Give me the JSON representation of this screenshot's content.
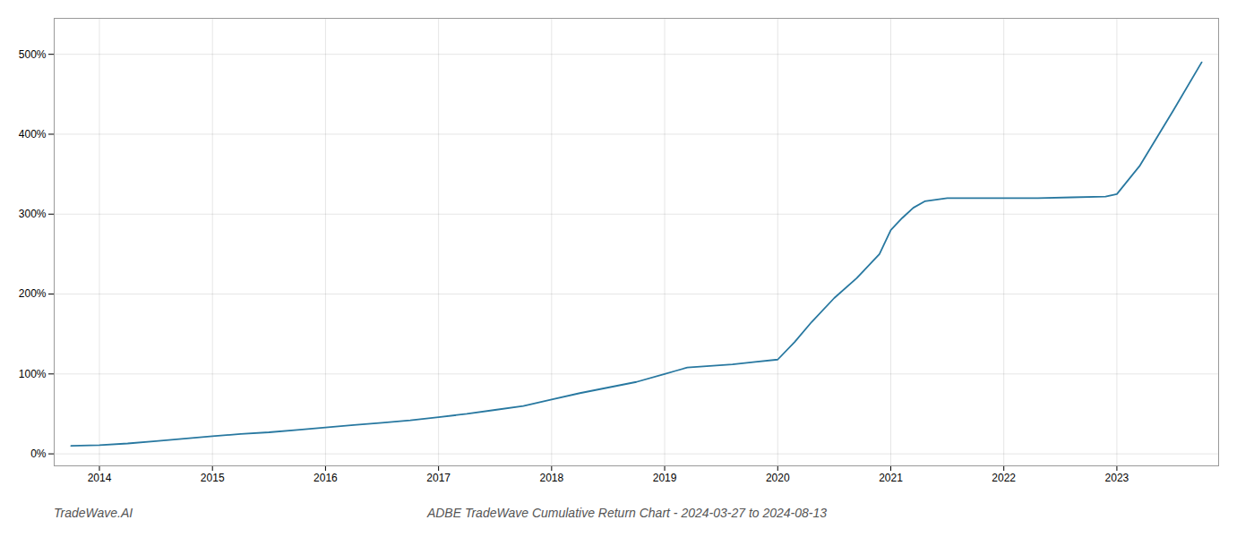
{
  "chart_data": {
    "type": "line",
    "title": "ADBE TradeWave Cumulative Return Chart - 2024-03-27 to 2024-08-13",
    "annotations": [
      "TradeWave.AI"
    ],
    "color": "#2878a0",
    "grid": true,
    "x": [
      2013.75,
      2014.0,
      2014.25,
      2014.5,
      2014.75,
      2015.0,
      2015.25,
      2015.5,
      2015.75,
      2016.0,
      2016.25,
      2016.5,
      2016.75,
      2017.0,
      2017.25,
      2017.5,
      2017.75,
      2018.0,
      2018.25,
      2018.5,
      2018.75,
      2019.0,
      2019.1,
      2019.2,
      2019.4,
      2019.6,
      2019.8,
      2020.0,
      2020.15,
      2020.3,
      2020.5,
      2020.7,
      2020.9,
      2021.0,
      2021.1,
      2021.2,
      2021.3,
      2021.5,
      2021.7,
      2021.9,
      2022.0,
      2022.3,
      2022.6,
      2022.9,
      2023.0,
      2023.2,
      2023.5,
      2023.75
    ],
    "values": [
      10,
      11,
      13,
      16,
      19,
      22,
      25,
      27,
      30,
      33,
      36,
      39,
      42,
      46,
      50,
      55,
      60,
      68,
      76,
      83,
      90,
      100,
      104,
      108,
      110,
      112,
      115,
      118,
      140,
      165,
      195,
      220,
      250,
      280,
      295,
      308,
      316,
      320,
      320,
      320,
      320,
      320,
      321,
      322,
      325,
      360,
      430,
      490
    ],
    "xlim": [
      2013.6,
      2023.9
    ],
    "xticks": [
      2014,
      2015,
      2016,
      2017,
      2018,
      2019,
      2020,
      2021,
      2022,
      2023
    ],
    "ylim": [
      -15,
      545
    ],
    "yticks": [
      {
        "value": 0,
        "label": "0%"
      },
      {
        "value": 100,
        "label": "100%"
      },
      {
        "value": 200,
        "label": "200%"
      },
      {
        "value": 300,
        "label": "300%"
      },
      {
        "value": 400,
        "label": "400%"
      },
      {
        "value": 500,
        "label": "500%"
      }
    ]
  }
}
